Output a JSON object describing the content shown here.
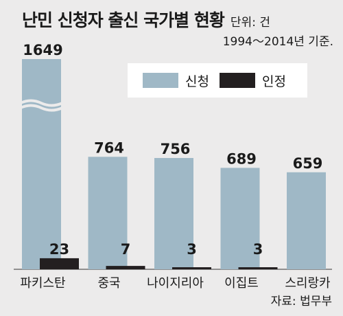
{
  "header": {
    "title": "난민 신청자 출신 국가별 현황",
    "unit": "단위: 건",
    "basis": "1994～2014년 기준."
  },
  "source": "자료: 법무부",
  "colors": {
    "applied": "#9fb8c6",
    "recognized": "#231f20",
    "background": "#ecebeb"
  },
  "chart_data": {
    "type": "bar",
    "categories": [
      "파키스탄",
      "중국",
      "나이지리아",
      "이집트",
      "스리랑카"
    ],
    "series": [
      {
        "name": "신청",
        "values": [
          1649,
          764,
          756,
          689,
          659
        ]
      },
      {
        "name": "인정",
        "values": [
          23,
          7,
          3,
          3,
          0
        ]
      }
    ],
    "value_labels": {
      "applied": [
        "1649",
        "764",
        "756",
        "689",
        "659"
      ],
      "recognized": [
        "23",
        "7",
        "3",
        "3",
        ""
      ]
    },
    "axis_break_on_first_bar": true,
    "legend": "top-right",
    "grid": false
  }
}
